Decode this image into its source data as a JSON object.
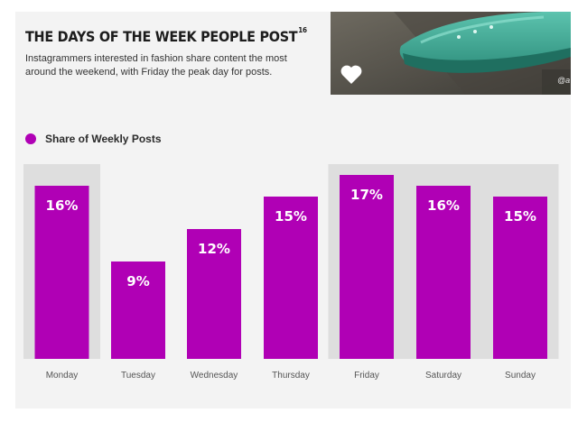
{
  "header": {
    "title": "THE DAYS OF THE WEEK PEOPLE POST",
    "title_superscript": "16",
    "subtitle": "Instagrammers interested in fashion share content the most around the weekend, with Friday the peak day for posts."
  },
  "photo": {
    "icon": "heart-icon",
    "caption_fragment": "@a"
  },
  "colors": {
    "bar": "#b000b5",
    "band": "#dedede",
    "card": "#f3f3f3"
  },
  "chart_data": {
    "type": "bar",
    "categories": [
      "Monday",
      "Tuesday",
      "Wednesday",
      "Thursday",
      "Friday",
      "Saturday",
      "Sunday"
    ],
    "series": [
      {
        "name": "Share of Weekly Posts",
        "values": [
          16,
          9,
          12,
          15,
          17,
          16,
          15
        ]
      }
    ],
    "value_labels": [
      "16%",
      "9%",
      "12%",
      "15%",
      "17%",
      "16%",
      "15%"
    ],
    "highlighted_categories": [
      "Monday",
      "Friday",
      "Saturday",
      "Sunday"
    ],
    "ylim": [
      0,
      18
    ],
    "grid": false,
    "legend": "top-left",
    "title": "",
    "xlabel": "",
    "ylabel": ""
  }
}
